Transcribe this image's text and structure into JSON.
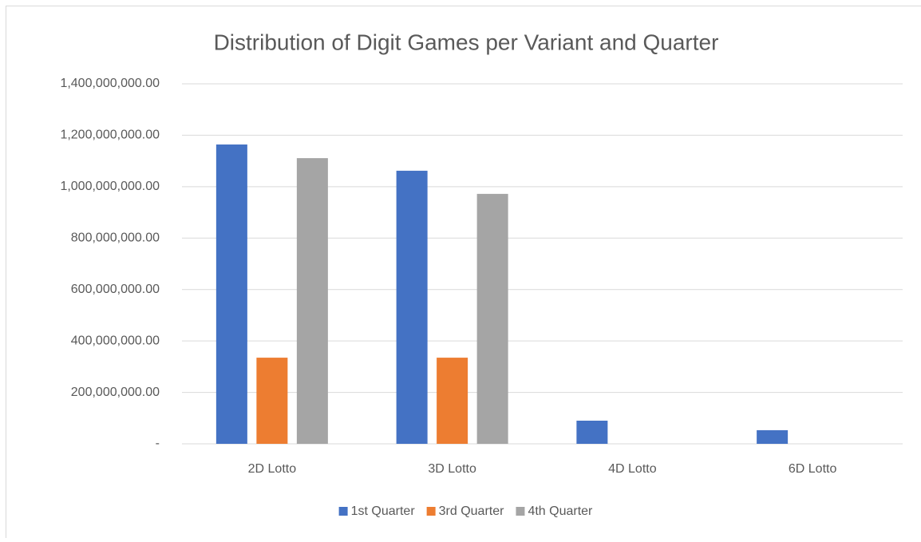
{
  "chart_data": {
    "type": "bar",
    "title": "Distribution of Digit Games per Variant and Quarter",
    "categories": [
      "2D Lotto",
      "3D Lotto",
      "4D Lotto",
      "6D Lotto"
    ],
    "series": [
      {
        "name": "1st Quarter",
        "color": "#4472c4",
        "values": [
          1164000000,
          1062000000,
          90000000,
          53000000
        ]
      },
      {
        "name": "3rd Quarter",
        "color": "#ed7d31",
        "values": [
          335000000,
          335000000,
          0,
          0
        ]
      },
      {
        "name": "4th Quarter",
        "color": "#a5a5a5",
        "values": [
          1111000000,
          972000000,
          0,
          0
        ]
      }
    ],
    "ylim": [
      0,
      1400000000
    ],
    "yticks": [
      {
        "value": 0,
        "label": "-"
      },
      {
        "value": 200000000,
        "label": "200,000,000.00"
      },
      {
        "value": 400000000,
        "label": "400,000,000.00"
      },
      {
        "value": 600000000,
        "label": "600,000,000.00"
      },
      {
        "value": 800000000,
        "label": "800,000,000.00"
      },
      {
        "value": 1000000000,
        "label": "1,000,000,000.00"
      },
      {
        "value": 1200000000,
        "label": "1,200,000,000.00"
      },
      {
        "value": 1400000000,
        "label": "1,400,000,000.00"
      }
    ],
    "grid": true,
    "legend": "bottom"
  }
}
